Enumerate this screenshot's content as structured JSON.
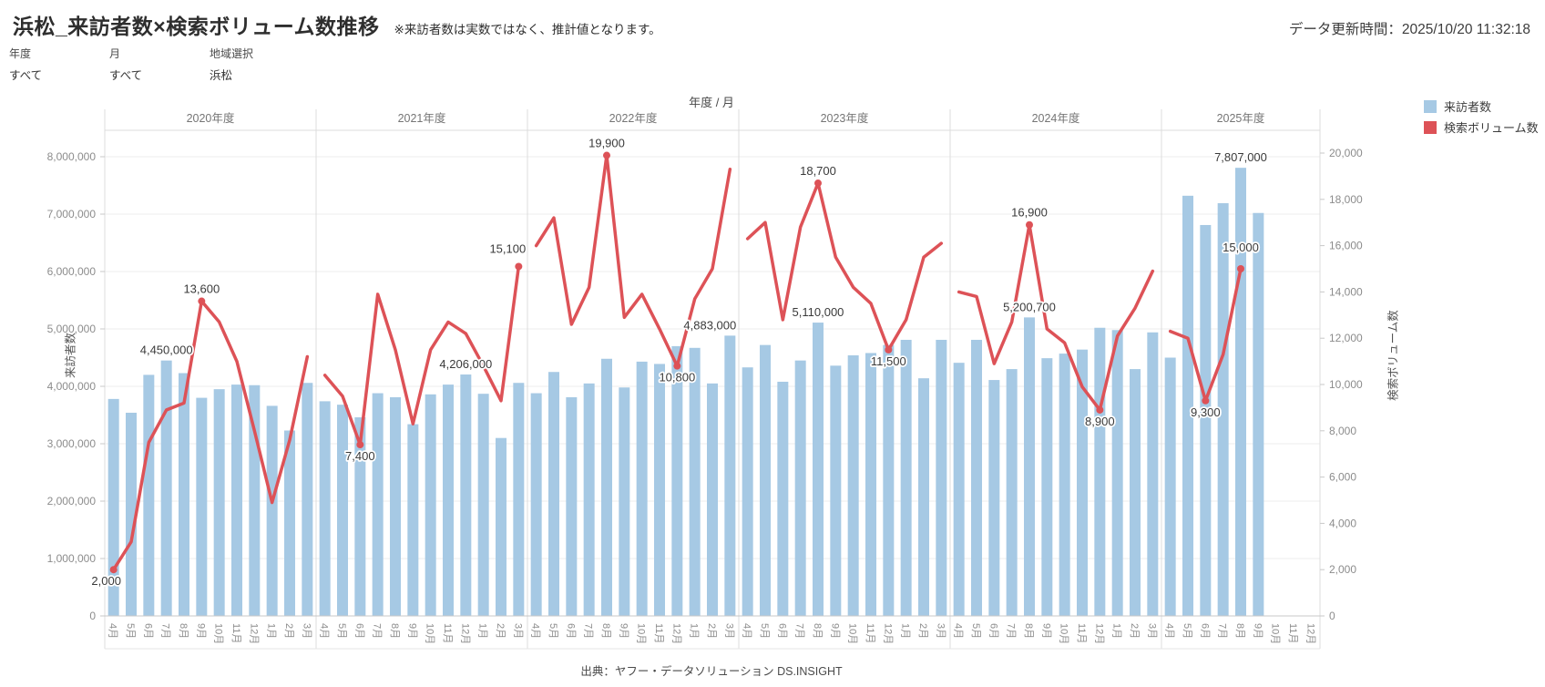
{
  "header": {
    "title": "浜松_来訪者数×検索ボリューム数推移",
    "note": "※来訪者数は実数ではなく、推計値となります。",
    "updated": "データ更新時間：2025/10/20 11:32:18"
  },
  "filters": [
    {
      "label": "年度",
      "value": "すべて"
    },
    {
      "label": "月",
      "value": "すべて"
    },
    {
      "label": "地域選択",
      "value": "浜松"
    }
  ],
  "legend": [
    {
      "label": "来訪者数",
      "color": "#a6c9e4"
    },
    {
      "label": "検索ボリューム数",
      "color": "#dd5257"
    }
  ],
  "source": "出典：ヤフー・データソリューション DS.INSIGHT",
  "colors": {
    "bar": "#a6c9e4",
    "line": "#dd5257",
    "grid": "#ededed",
    "axisline": "#c9c9c9",
    "separator": "#dcdcdc",
    "strip": "#e6e6e6",
    "tick_text": "#8c8c8c",
    "header_text": "#757575",
    "annotation": "#3a3a3a"
  },
  "chart_data": {
    "type": "dual-axis bar+line",
    "title": "浜松_来訪者数×検索ボリューム数推移",
    "column_title": "年度 / 月",
    "grid": true,
    "legend_position": "top-right",
    "left_axis": {
      "title": "来訪者数",
      "range": [
        0,
        8600000
      ],
      "ticks": [
        "0",
        "1,000,000",
        "2,000,000",
        "3,000,000",
        "4,000,000",
        "5,000,000",
        "6,000,000",
        "7,000,000",
        "8,000,000"
      ]
    },
    "right_axis": {
      "title": "検索ボリューム数",
      "range": [
        0,
        21300
      ],
      "ticks": [
        "0",
        "2,000",
        "4,000",
        "6,000",
        "8,000",
        "10,000",
        "12,000",
        "14,000",
        "16,000",
        "18,000",
        "20,000"
      ]
    },
    "years": [
      {
        "label": "2020年度",
        "months": [
          "4月",
          "5月",
          "6月",
          "7月",
          "8月",
          "9月",
          "10月",
          "11月",
          "12月",
          "1月",
          "2月",
          "3月"
        ],
        "visitors": [
          3780000,
          3540000,
          4200000,
          4450000,
          4230000,
          3800000,
          3950000,
          4030000,
          4020000,
          3660000,
          3230000,
          4060000
        ],
        "search": [
          2000,
          3200,
          7500,
          8900,
          9200,
          13600,
          12700,
          11000,
          8000,
          4900,
          7600,
          11200
        ]
      },
      {
        "label": "2021年度",
        "months": [
          "4月",
          "5月",
          "6月",
          "7月",
          "8月",
          "9月",
          "10月",
          "11月",
          "12月",
          "1月",
          "2月",
          "3月"
        ],
        "visitors": [
          3740000,
          3680000,
          3460000,
          3880000,
          3810000,
          3340000,
          3860000,
          4030000,
          4206000,
          3870000,
          3100000,
          4060000
        ],
        "search": [
          10400,
          9500,
          7400,
          13900,
          11500,
          8300,
          11500,
          12700,
          12200,
          10800,
          9300,
          15100
        ]
      },
      {
        "label": "2022年度",
        "months": [
          "4月",
          "5月",
          "6月",
          "7月",
          "8月",
          "9月",
          "10月",
          "11月",
          "12月",
          "1月",
          "2月",
          "3月"
        ],
        "visitors": [
          3880000,
          4250000,
          3810000,
          4050000,
          4480000,
          3980000,
          4430000,
          4390000,
          4700000,
          4670000,
          4050000,
          4883000
        ],
        "search": [
          16000,
          17200,
          12600,
          14200,
          19900,
          12900,
          13900,
          12400,
          10800,
          13700,
          15000,
          19300
        ]
      },
      {
        "label": "2023年度",
        "months": [
          "4月",
          "5月",
          "6月",
          "7月",
          "8月",
          "9月",
          "10月",
          "11月",
          "12月",
          "1月",
          "2月",
          "3月"
        ],
        "visitors": [
          4330000,
          4720000,
          4080000,
          4450000,
          5110000,
          4360000,
          4540000,
          4580000,
          4720000,
          4810000,
          4140000,
          4810000
        ],
        "search": [
          16300,
          17000,
          12800,
          16800,
          18700,
          15500,
          14200,
          13500,
          11500,
          12800,
          15500,
          16100
        ]
      },
      {
        "label": "2024年度",
        "months": [
          "4月",
          "5月",
          "6月",
          "7月",
          "8月",
          "9月",
          "10月",
          "11月",
          "12月",
          "1月",
          "2月",
          "3月"
        ],
        "visitors": [
          4410000,
          4810000,
          4110000,
          4300000,
          5200700,
          4490000,
          4570000,
          4640000,
          5020000,
          4980000,
          4300000,
          4940000
        ],
        "search": [
          14000,
          13800,
          10900,
          12700,
          16900,
          12400,
          11800,
          9900,
          8900,
          12100,
          13300,
          14900
        ]
      },
      {
        "label": "2025年度",
        "months": [
          "4月",
          "5月",
          "6月",
          "7月",
          "8月",
          "9月",
          "10月",
          "11月",
          "12月"
        ],
        "visitors": [
          4500000,
          7320000,
          6810000,
          7190000,
          7807000,
          7020000,
          null,
          null,
          null
        ],
        "search": [
          12300,
          12000,
          9300,
          11300,
          15000,
          null,
          null,
          null,
          null
        ]
      }
    ],
    "annotations": [
      {
        "year": 0,
        "m": 0,
        "series": "search",
        "text": "2,000",
        "pos": "below",
        "dx": -8
      },
      {
        "year": 0,
        "m": 5,
        "series": "search",
        "text": "13,600",
        "pos": "above"
      },
      {
        "year": 0,
        "m": 3,
        "series": "visitors",
        "text": "4,450,000",
        "pos": "above"
      },
      {
        "year": 1,
        "m": 2,
        "series": "search",
        "text": "7,400",
        "pos": "below"
      },
      {
        "year": 1,
        "m": 8,
        "series": "visitors",
        "text": "4,206,000",
        "pos": "above"
      },
      {
        "year": 1,
        "m": 11,
        "series": "search",
        "text": "15,100",
        "pos": "above",
        "dx": -12,
        "dy": -6
      },
      {
        "year": 2,
        "m": 4,
        "series": "search",
        "text": "19,900",
        "pos": "above"
      },
      {
        "year": 2,
        "m": 8,
        "series": "search",
        "text": "10,800",
        "pos": "below"
      },
      {
        "year": 2,
        "m": 11,
        "series": "visitors",
        "text": "4,883,000",
        "pos": "above",
        "dx": -22
      },
      {
        "year": 3,
        "m": 4,
        "series": "search",
        "text": "18,700",
        "pos": "above"
      },
      {
        "year": 3,
        "m": 4,
        "series": "visitors",
        "text": "5,110,000",
        "pos": "above"
      },
      {
        "year": 3,
        "m": 8,
        "series": "search",
        "text": "11,500",
        "pos": "below"
      },
      {
        "year": 4,
        "m": 4,
        "series": "search",
        "text": "16,900",
        "pos": "above"
      },
      {
        "year": 4,
        "m": 4,
        "series": "visitors",
        "text": "5,200,700",
        "pos": "above"
      },
      {
        "year": 4,
        "m": 8,
        "series": "search",
        "text": "8,900",
        "pos": "below"
      },
      {
        "year": 5,
        "m": 4,
        "series": "visitors",
        "text": "7,807,000",
        "pos": "above"
      },
      {
        "year": 5,
        "m": 4,
        "series": "search",
        "text": "15,000",
        "pos": "above",
        "dy": -10
      },
      {
        "year": 5,
        "m": 2,
        "series": "search",
        "text": "9,300",
        "pos": "below"
      }
    ]
  }
}
